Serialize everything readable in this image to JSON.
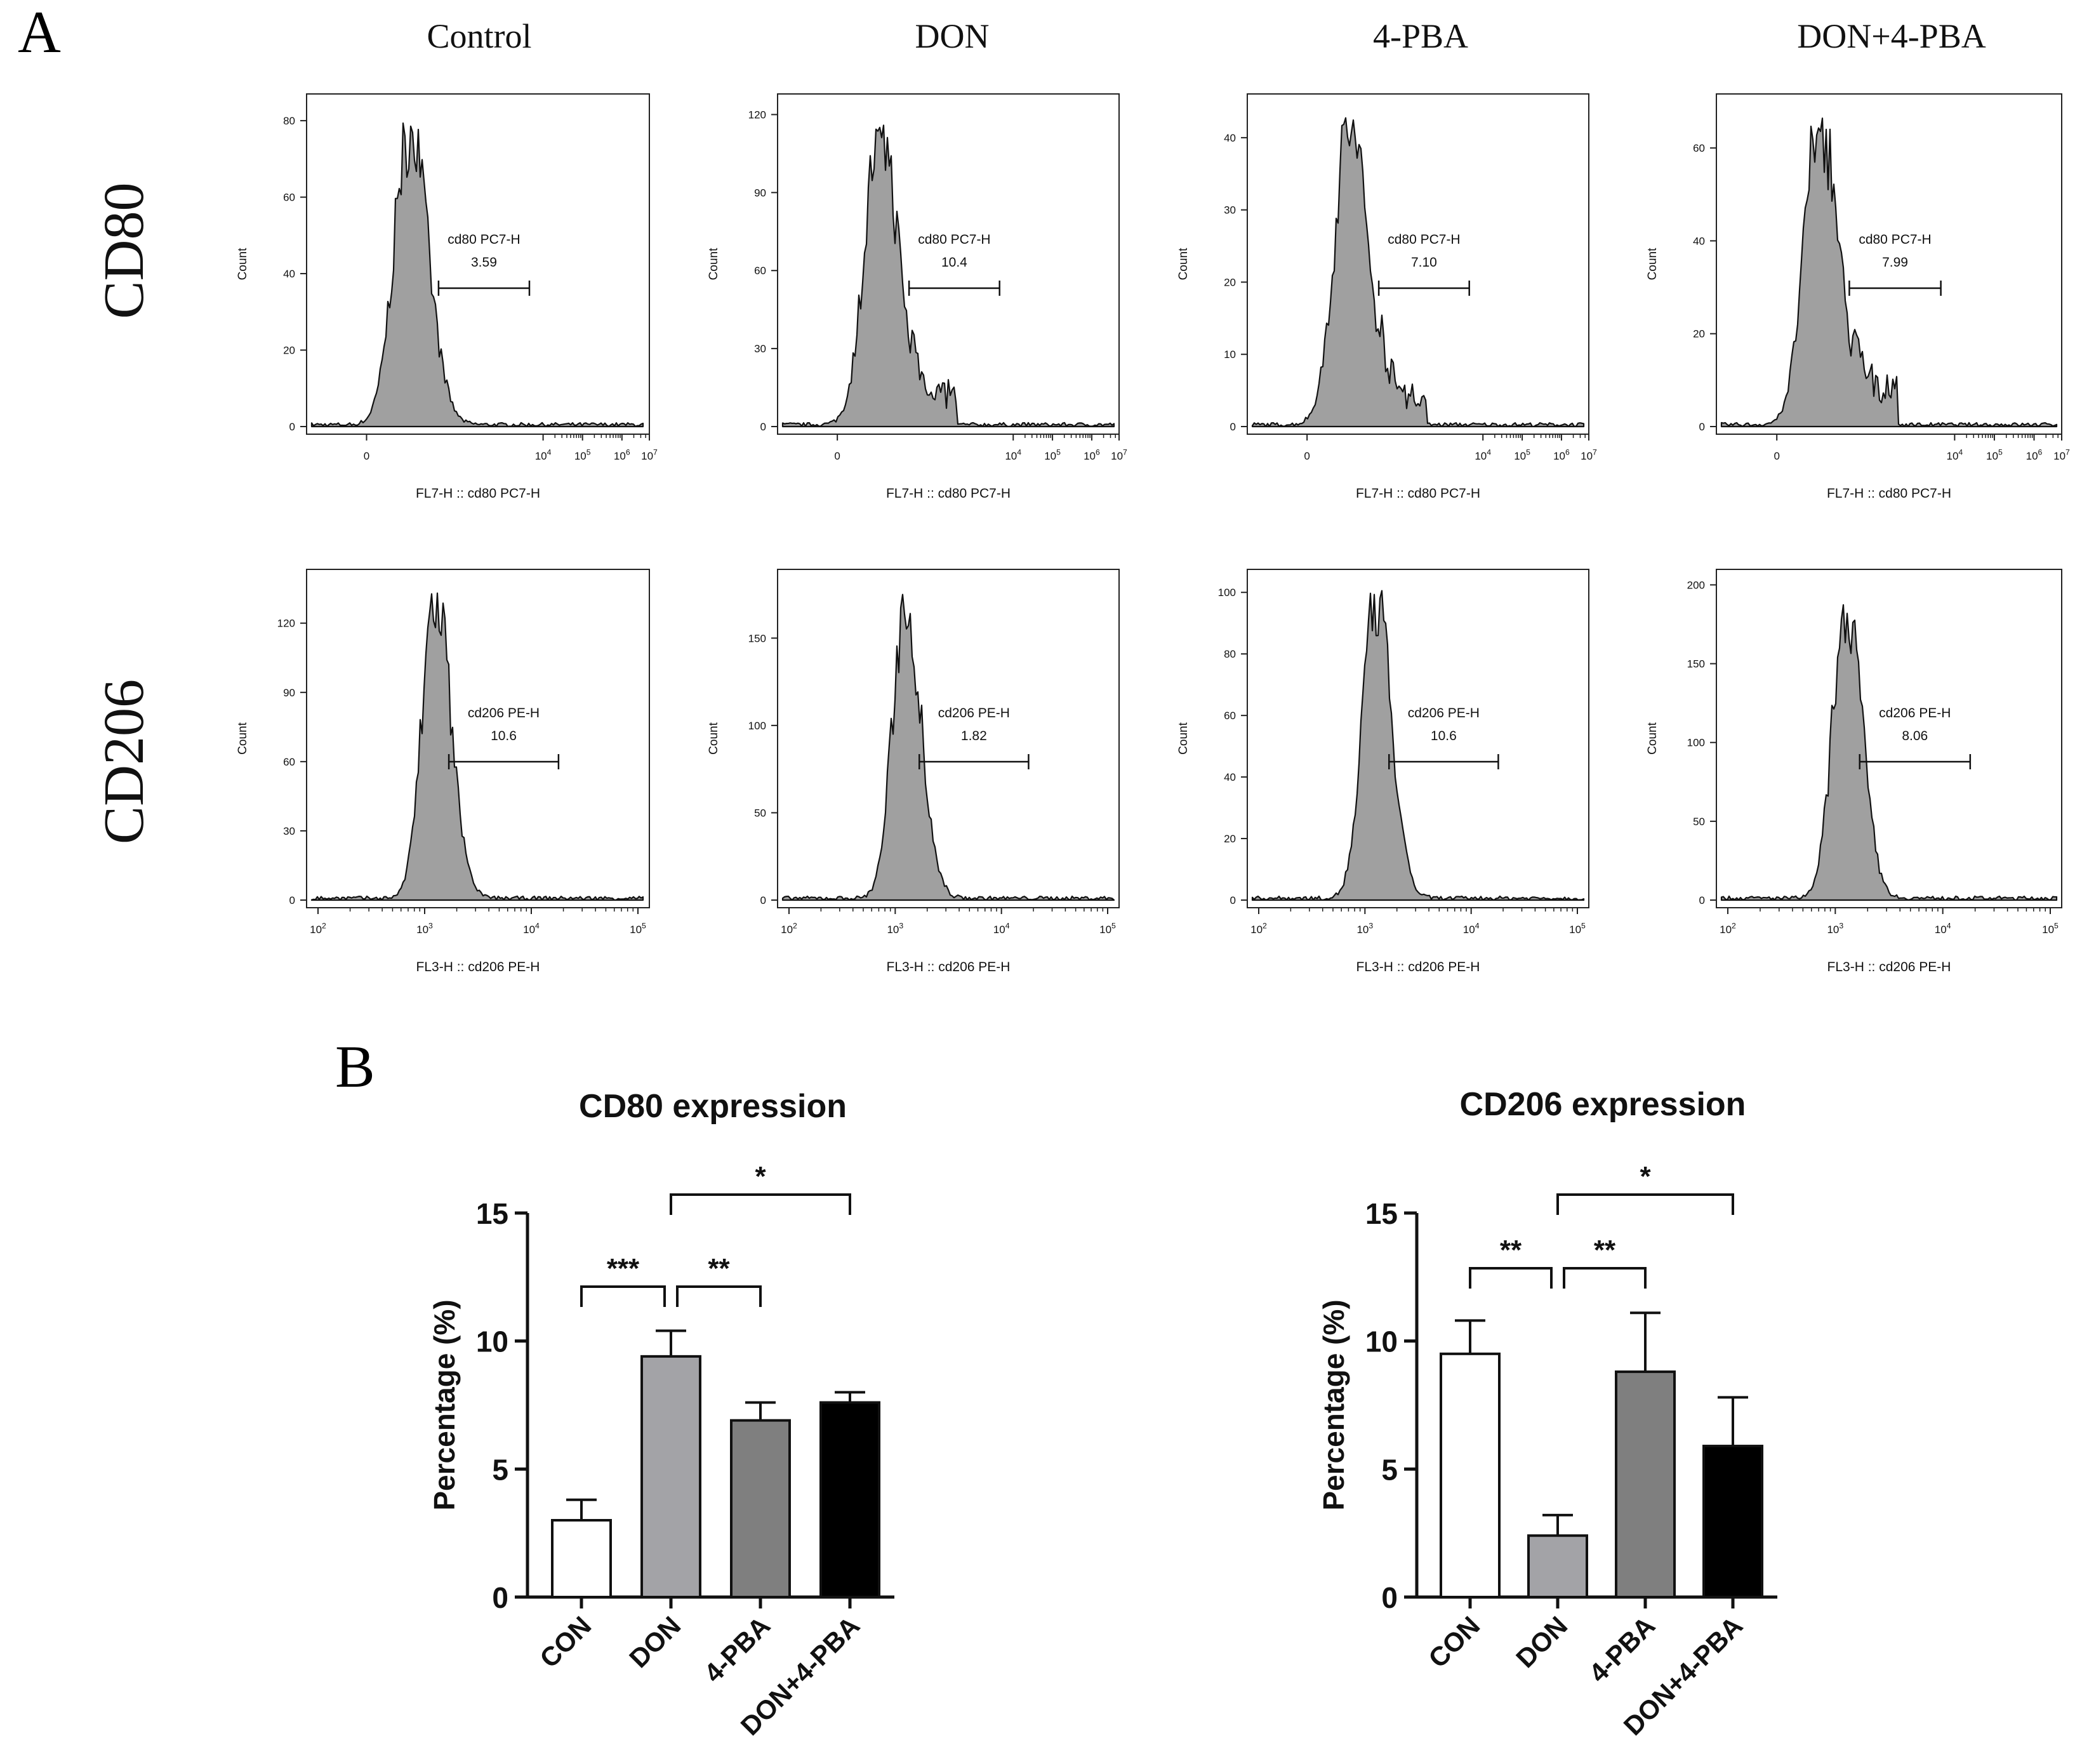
{
  "panel_labels": {
    "a": "A",
    "b": "B"
  },
  "columns": [
    "Control",
    "DON",
    "4-PBA",
    "DON+4-PBA"
  ],
  "rows": [
    "CD80",
    "CD206"
  ],
  "chart_data": [
    {
      "type": "histogram",
      "marker": "CD80",
      "ylabel": "Count",
      "xlabel": "FL7-H :: cd80 PC7-H",
      "x_scale": "biexponential",
      "x_tick_labels": [
        "0",
        "10^4",
        "10^5",
        "10^6",
        "10^7"
      ],
      "panels": [
        {
          "group": "Control",
          "ylim": [
            0,
            85
          ],
          "y_ticks": [
            0,
            20,
            40,
            60,
            80
          ],
          "peak": 80,
          "gate": {
            "name": "cd80 PC7-H",
            "percent": "3.59"
          },
          "shoulder": 0
        },
        {
          "group": "DON",
          "ylim": [
            0,
            125
          ],
          "y_ticks": [
            0,
            30,
            60,
            90,
            120
          ],
          "peak": 117,
          "gate": {
            "name": "cd80 PC7-H",
            "percent": "10.4"
          },
          "shoulder": 12
        },
        {
          "group": "4-PBA",
          "ylim": [
            0,
            45
          ],
          "y_ticks": [
            0,
            10,
            20,
            30,
            40
          ],
          "peak": 43,
          "gate": {
            "name": "cd80 PC7-H",
            "percent": "7.10"
          },
          "shoulder": 4
        },
        {
          "group": "DON+4-PBA",
          "ylim": [
            0,
            70
          ],
          "y_ticks": [
            0,
            20,
            40,
            60
          ],
          "peak": 68,
          "gate": {
            "name": "cd80 PC7-H",
            "percent": "7.99"
          },
          "shoulder": 8
        }
      ]
    },
    {
      "type": "histogram",
      "marker": "CD206",
      "ylabel": "Count",
      "xlabel": "FL3-H :: cd206 PE-H",
      "x_scale": "log",
      "x_tick_labels": [
        "10^2",
        "10^3",
        "10^4",
        "10^5"
      ],
      "panels": [
        {
          "group": "Control",
          "ylim": [
            0,
            140
          ],
          "y_ticks": [
            0,
            30,
            60,
            90,
            120
          ],
          "peak": 135,
          "gate": {
            "name": "cd206 PE-H",
            "percent": "10.6"
          }
        },
        {
          "group": "DON",
          "ylim": [
            0,
            185
          ],
          "y_ticks": [
            0,
            50,
            100,
            150
          ],
          "peak": 175,
          "gate": {
            "name": "cd206 PE-H",
            "percent": "1.82"
          }
        },
        {
          "group": "4-PBA",
          "ylim": [
            0,
            105
          ],
          "y_ticks": [
            0,
            20,
            40,
            60,
            80,
            100
          ],
          "peak": 102,
          "gate": {
            "name": "cd206 PE-H",
            "percent": "10.6"
          }
        },
        {
          "group": "DON+4-PBA",
          "ylim": [
            0,
            205
          ],
          "y_ticks": [
            0,
            50,
            100,
            150,
            200
          ],
          "peak": 195,
          "gate": {
            "name": "cd206 PE-H",
            "percent": "8.06"
          }
        }
      ]
    },
    {
      "type": "bar",
      "title": "CD80 expression",
      "ylabel": "Percentage (%)",
      "categories": [
        "CON",
        "DON",
        "4-PBA",
        "DON+4-PBA"
      ],
      "values": [
        3.0,
        9.4,
        6.9,
        7.6
      ],
      "errors": [
        0.8,
        1.0,
        0.7,
        0.4
      ],
      "fills": [
        "#ffffff",
        "#a3a3a7",
        "#7f7f7f",
        "#000000"
      ],
      "ylim": [
        0,
        15
      ],
      "y_ticks": [
        0,
        5,
        10,
        15
      ],
      "significance": [
        {
          "from": 0,
          "to": 1,
          "label": "***"
        },
        {
          "from": 1,
          "to": 2,
          "label": "**"
        },
        {
          "from": 1,
          "to": 3,
          "label": "*"
        }
      ]
    },
    {
      "type": "bar",
      "title": "CD206 expression",
      "ylabel": "Percentage (%)",
      "categories": [
        "CON",
        "DON",
        "4-PBA",
        "DON+4-PBA"
      ],
      "values": [
        9.5,
        2.4,
        8.8,
        5.9
      ],
      "errors": [
        1.3,
        0.8,
        2.3,
        1.9
      ],
      "fills": [
        "#ffffff",
        "#a3a3a7",
        "#7f7f7f",
        "#000000"
      ],
      "ylim": [
        0,
        15
      ],
      "y_ticks": [
        0,
        5,
        10,
        15
      ],
      "significance": [
        {
          "from": 0,
          "to": 1,
          "label": "**"
        },
        {
          "from": 1,
          "to": 2,
          "label": "**"
        },
        {
          "from": 1,
          "to": 3,
          "label": "*"
        }
      ]
    }
  ]
}
